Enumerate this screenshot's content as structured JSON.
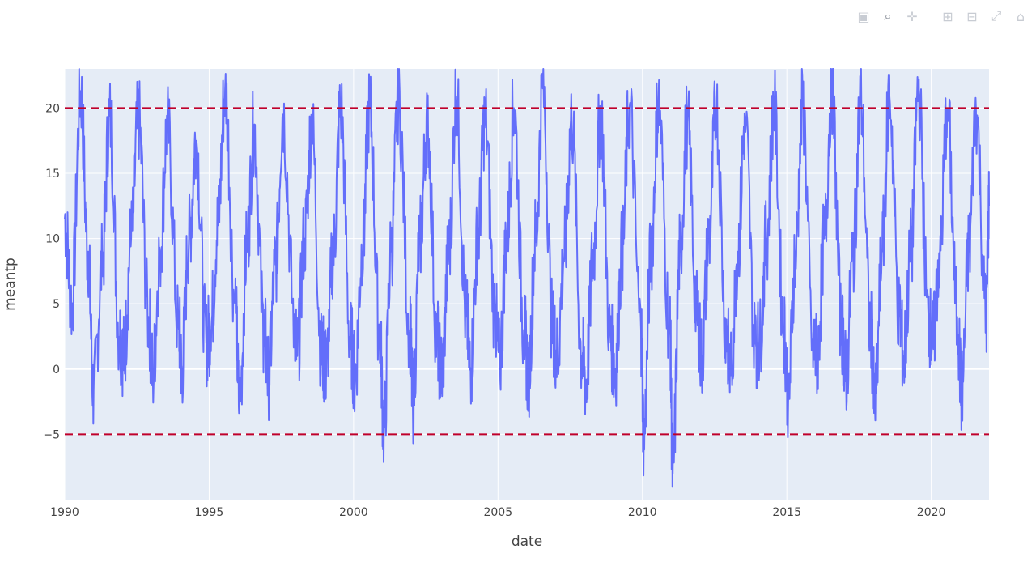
{
  "toolbar": {
    "buttons": [
      {
        "name": "camera-icon",
        "glyph": "▣"
      },
      {
        "name": "zoom-icon",
        "glyph": "⌕"
      },
      {
        "name": "pan-icon",
        "glyph": "✛"
      },
      {
        "name": "zoom-in-icon",
        "glyph": "⊞"
      },
      {
        "name": "zoom-out-icon",
        "glyph": "⊟"
      },
      {
        "name": "autoscale-icon",
        "glyph": "⤢"
      },
      {
        "name": "home-icon",
        "glyph": "⌂"
      }
    ]
  },
  "chart_data": {
    "type": "line",
    "xlabel": "date",
    "ylabel": "meantp",
    "xlim": [
      1990,
      2022
    ],
    "ylim": [
      -10,
      23
    ],
    "x_ticks": [
      1990,
      1995,
      2000,
      2005,
      2010,
      2015,
      2020
    ],
    "y_ticks": [
      -5,
      0,
      5,
      10,
      15,
      20
    ],
    "grid": true,
    "background": "#e5ecf6",
    "series_color": "#636efa",
    "threshold_color": "#c0002b",
    "thresholds": [
      20,
      -5
    ],
    "series": [
      {
        "x": [
          1990.0,
          1990.25,
          1990.55,
          1990.8,
          1991.0,
          1991.3,
          1991.55,
          1991.9,
          1992.05,
          1992.3,
          1992.55,
          1992.9,
          1993.05,
          1993.3,
          1993.55,
          1993.95,
          1994.05,
          1994.3,
          1994.55,
          1994.9,
          1995.05,
          1995.3,
          1995.55,
          1995.9,
          1996.05,
          1996.3,
          1996.55,
          1996.9,
          1997.05,
          1997.3,
          1997.55,
          1997.95,
          1998.05,
          1998.3,
          1998.55,
          1998.9,
          1999.05,
          1999.3,
          1999.55,
          1999.9,
          2000.05,
          2000.3,
          2000.55,
          2000.9,
          2001.05,
          2001.3,
          2001.55,
          2001.95,
          2002.05,
          2002.3,
          2002.55,
          2002.9,
          2003.05,
          2003.3,
          2003.55,
          2003.9,
          2004.05,
          2004.3,
          2004.55,
          2004.9,
          2005.05,
          2005.3,
          2005.55,
          2005.9,
          2006.05,
          2006.3,
          2006.55,
          2006.9,
          2007.05,
          2007.3,
          2007.55,
          2007.9,
          2008.05,
          2008.3,
          2008.55,
          2008.9,
          2009.05,
          2009.3,
          2009.55,
          2009.95,
          2010.05,
          2010.3,
          2010.55,
          2010.95,
          2011.05,
          2011.3,
          2011.55,
          2011.9,
          2012.05,
          2012.3,
          2012.55,
          2012.9,
          2013.05,
          2013.3,
          2013.55,
          2013.9,
          2014.05,
          2014.3,
          2014.55,
          2014.9,
          2015.05,
          2015.3,
          2015.55,
          2015.9,
          2016.05,
          2016.3,
          2016.55,
          2016.9,
          2017.05,
          2017.3,
          2017.55,
          2017.9,
          2018.05,
          2018.3,
          2018.55,
          2018.9,
          2019.05,
          2019.3,
          2019.55,
          2019.9,
          2020.05,
          2020.3,
          2020.55,
          2020.9,
          2021.05,
          2021.3,
          2021.55,
          2021.9,
          2022.0
        ],
        "y": [
          11.5,
          5.0,
          21.3,
          9.0,
          -1.7,
          8.0,
          19.4,
          2.5,
          1.0,
          10.0,
          19.2,
          4.0,
          -0.4,
          9.0,
          18.6,
          3.0,
          0.0,
          10.0,
          17.5,
          2.0,
          3.0,
          11.0,
          21.4,
          5.0,
          -2.8,
          9.0,
          18.4,
          3.0,
          -0.5,
          8.0,
          19.5,
          4.0,
          1.0,
          10.0,
          18.7,
          1.0,
          0.0,
          9.0,
          20.0,
          2.0,
          -0.5,
          9.0,
          20.0,
          3.0,
          -4.5,
          9.0,
          20.7,
          3.0,
          -2.5,
          10.0,
          19.0,
          2.0,
          -0.3,
          9.0,
          20.9,
          4.0,
          0.0,
          10.0,
          19.2,
          4.0,
          0.5,
          10.0,
          20.0,
          3.0,
          -0.5,
          10.0,
          21.5,
          3.0,
          1.0,
          9.0,
          19.0,
          1.0,
          -1.0,
          9.0,
          19.5,
          2.0,
          0.0,
          9.0,
          20.0,
          3.0,
          -5.2,
          9.0,
          20.3,
          3.0,
          -8.0,
          9.0,
          18.9,
          4.0,
          1.0,
          10.0,
          20.0,
          3.0,
          -0.5,
          9.0,
          19.0,
          2.0,
          2.0,
          10.0,
          20.0,
          3.0,
          -2.0,
          9.0,
          20.0,
          2.0,
          1.0,
          10.0,
          21.5,
          3.0,
          -0.5,
          9.0,
          20.5,
          3.0,
          -2.8,
          9.0,
          21.0,
          4.0,
          1.0,
          9.0,
          21.4,
          4.0,
          2.0,
          9.0,
          20.0,
          4.0,
          -1.8,
          9.0,
          19.8,
          4.0,
          12.5
        ]
      }
    ]
  }
}
